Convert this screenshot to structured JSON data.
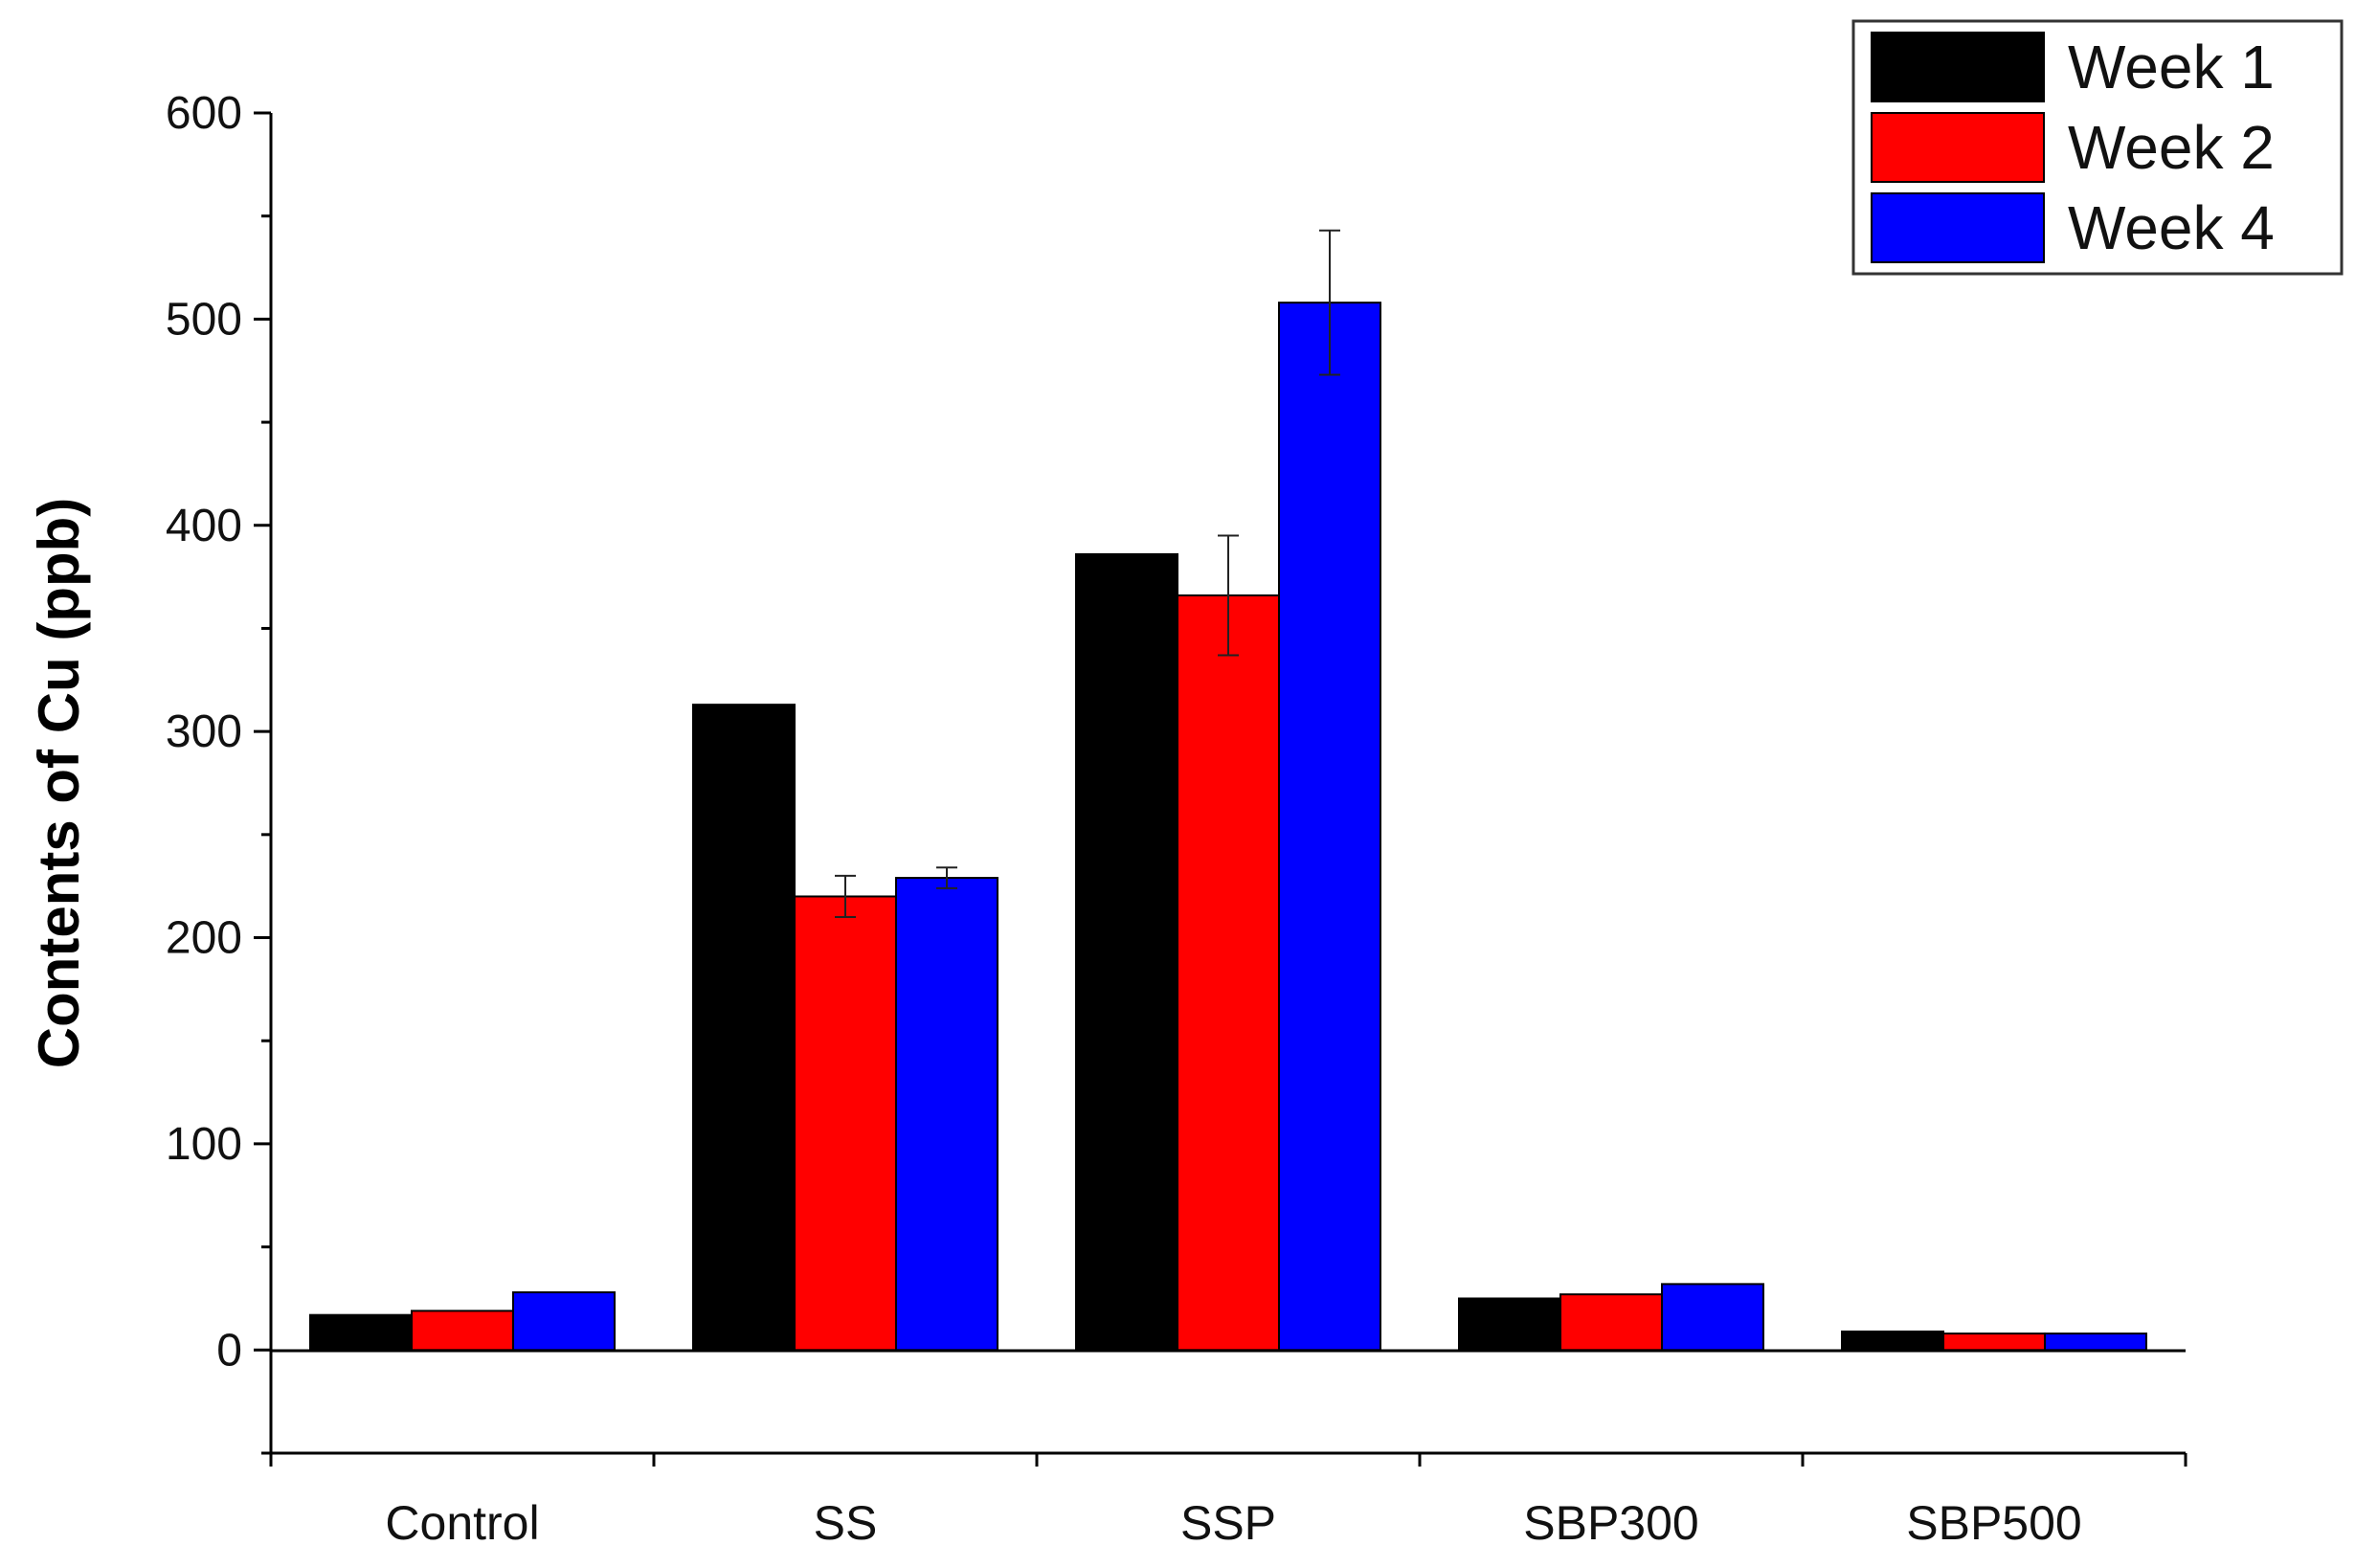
{
  "chart_data": {
    "type": "bar",
    "ylabel": "Contents of Cu (ppb)",
    "xlabel": "",
    "ylim": [
      -50,
      600
    ],
    "yticks": [
      0,
      100,
      200,
      300,
      400,
      500,
      600
    ],
    "categories": [
      "Control",
      "SS",
      "SSP",
      "SBP300",
      "SBP500"
    ],
    "series": [
      {
        "name": "Week 1",
        "color": "#000000",
        "values": [
          17,
          313,
          386,
          25,
          9
        ],
        "errors": [
          0,
          0,
          0,
          0,
          0
        ]
      },
      {
        "name": "Week 2",
        "color": "#ff0000",
        "values": [
          19,
          220,
          366,
          27,
          8
        ],
        "errors": [
          0,
          10,
          29,
          0,
          0
        ]
      },
      {
        "name": "Week 4",
        "color": "#0000ff",
        "values": [
          28,
          229,
          508,
          32,
          8
        ],
        "errors": [
          0,
          5,
          35,
          0,
          0
        ]
      }
    ],
    "legend_position": "top-right",
    "grid": false
  }
}
